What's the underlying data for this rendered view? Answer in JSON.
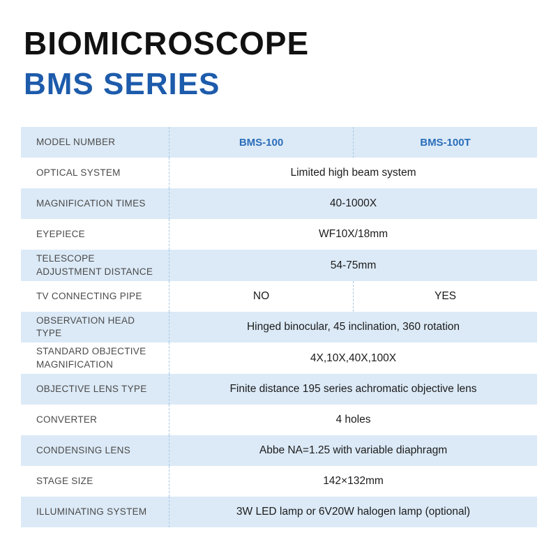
{
  "header": {
    "title": "BIOMICROSCOPE",
    "subtitle": "BMS SERIES"
  },
  "colors": {
    "accent_blue": "#1d5bab",
    "value_blue": "#2a6db9",
    "row_alt_bg": "#dceaf7",
    "dashed_divider": "#a5c8e6",
    "label_text": "#4a4a4a"
  },
  "table": {
    "header": {
      "label": "MODEL NUMBER",
      "col1": "BMS-100",
      "col2": "BMS-100T"
    },
    "rows": [
      {
        "label": "OPTICAL SYSTEM",
        "value": "Limited high beam system"
      },
      {
        "label": "MAGNIFICATION TIMES",
        "value": "40-1000X"
      },
      {
        "label": "EYEPIECE",
        "value": "WF10X/18mm"
      },
      {
        "label": "TELESCOPE ADJUSTMENT DISTANCE",
        "value": "54-75mm"
      },
      {
        "label": "TV CONNECTING PIPE",
        "values": [
          "NO",
          "YES"
        ]
      },
      {
        "label": "OBSERVATION HEAD TYPE",
        "value": "Hinged binocular, 45 inclination, 360 rotation"
      },
      {
        "label": "STANDARD OBJECTIVE MAGNIFICATION",
        "value": "4X,10X,40X,100X"
      },
      {
        "label": "OBJECTIVE LENS TYPE",
        "value": "Finite distance 195 series achromatic objective lens"
      },
      {
        "label": "CONVERTER",
        "value": "4 holes"
      },
      {
        "label": "CONDENSING LENS",
        "value": "Abbe NA=1.25 with variable diaphragm"
      },
      {
        "label": "STAGE SIZE",
        "value": "142×132mm"
      },
      {
        "label": "ILLUMINATING SYSTEM",
        "value": "3W LED lamp or 6V20W halogen lamp (optional)"
      }
    ]
  }
}
